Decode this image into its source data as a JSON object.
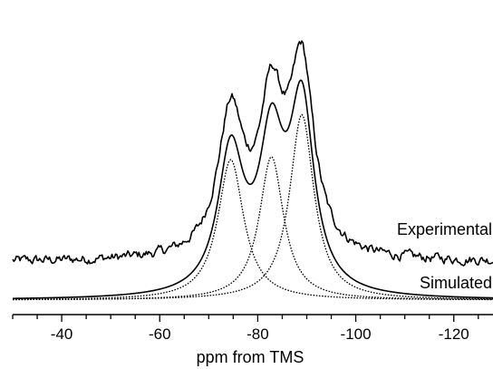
{
  "chart_data": {
    "type": "line",
    "xlabel": "ppm from TMS",
    "xlim": [
      -30,
      -128
    ],
    "x_reversed": true,
    "x_ticks": [
      -40,
      -60,
      -80,
      -100,
      -120
    ],
    "x_tick_labels": [
      "-40",
      "-60",
      "-80",
      "-100",
      "-120"
    ],
    "x_minor_step": 5,
    "y_axis_shown": false,
    "grid": false,
    "legend": "none",
    "annotations": [
      "Experimental",
      "Simulated"
    ],
    "components": [
      {
        "center": -74.5,
        "amplitude": 1.0,
        "width": 3.2
      },
      {
        "center": -82.8,
        "amplitude": 1.02,
        "width": 3.0
      },
      {
        "center": -89.0,
        "amplitude": 1.32,
        "width": 3.0
      }
    ],
    "series": [
      {
        "name": "Experimental",
        "style": "solid",
        "offset": 0.27,
        "noise": true,
        "x": [
          -30,
          -40,
          -50,
          -60,
          -66,
          -70,
          -74.5,
          -78.5,
          -82.8,
          -86.0,
          -89.0,
          -92,
          -96,
          -100,
          -110,
          -120,
          -128
        ],
        "y": [
          0.27,
          0.28,
          0.29,
          0.34,
          0.54,
          0.88,
          1.45,
          1.2,
          1.74,
          1.42,
          2.03,
          1.05,
          0.55,
          0.4,
          0.32,
          0.3,
          0.29
        ]
      },
      {
        "name": "Simulated",
        "style": "solid",
        "offset": 0.0,
        "x": [
          -30,
          -40,
          -50,
          -60,
          -66,
          -70,
          -74.5,
          -78.5,
          -82.8,
          -86.0,
          -89.0,
          -92,
          -96,
          -100,
          -110,
          -120,
          -128
        ],
        "y": [
          0.01,
          0.02,
          0.04,
          0.1,
          0.27,
          0.62,
          1.2,
          0.95,
          1.46,
          1.15,
          1.76,
          0.8,
          0.3,
          0.14,
          0.05,
          0.02,
          0.01
        ]
      }
    ]
  }
}
